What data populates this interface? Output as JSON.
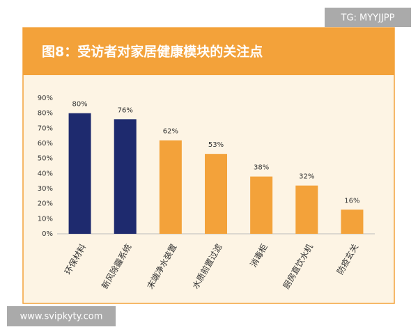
{
  "chart_data": {
    "type": "bar",
    "title": "图8：受访者对家居健康模块的关注点",
    "categories": [
      "环保材料",
      "新风除霾系统",
      "末端净水装置",
      "水质前置过滤",
      "消毒柜",
      "厨房直饮水机",
      "防疫玄关"
    ],
    "values": [
      80,
      76,
      62,
      53,
      38,
      32,
      16
    ],
    "value_labels": [
      "80%",
      "76%",
      "62%",
      "53%",
      "38%",
      "32%",
      "16%"
    ],
    "colors": [
      "#1e2a6e",
      "#1e2a6e",
      "#f3a23a",
      "#f3a23a",
      "#f3a23a",
      "#f3a23a",
      "#f3a23a"
    ],
    "ylim": [
      0,
      90
    ],
    "yticks": [
      {
        "value": 0,
        "label": "0%"
      },
      {
        "value": 10,
        "label": "10%"
      },
      {
        "value": 20,
        "label": "20%"
      },
      {
        "value": 30,
        "label": "30%"
      },
      {
        "value": 40,
        "label": "40%"
      },
      {
        "value": 50,
        "label": "50%"
      },
      {
        "value": 60,
        "label": "60%"
      },
      {
        "value": 70,
        "label": "70%"
      },
      {
        "value": 80,
        "label": "80%"
      },
      {
        "value": 90,
        "label": "90%"
      }
    ],
    "grid": false
  },
  "watermarks": [
    "TG: MYYJJPP",
    "www.svipkyty.com"
  ]
}
